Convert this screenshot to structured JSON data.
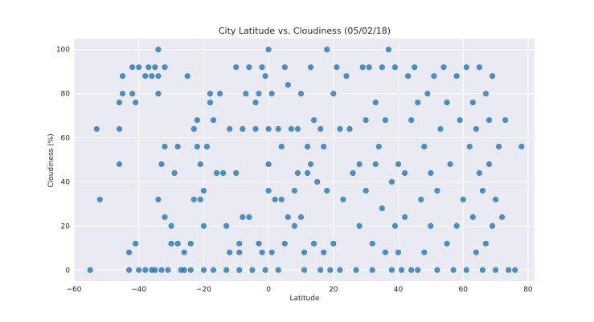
{
  "figure": {
    "background": "#ffffff",
    "plot_background": "#eaeaf2",
    "grid_color": "#ffffff",
    "marker_color": "#1f77b4"
  },
  "chart_data": {
    "type": "scatter",
    "title": "City Latitude vs. Cloudiness (05/02/18)",
    "xlabel": "Latitude",
    "ylabel": "Cloudiness (%)",
    "xlim": [
      -60,
      82
    ],
    "ylim": [
      -5,
      105
    ],
    "xticks": [
      -60,
      -40,
      -20,
      0,
      20,
      40,
      60,
      80
    ],
    "yticks": [
      0,
      20,
      40,
      60,
      80,
      100
    ],
    "grid": true,
    "legend": "none",
    "points": [
      [
        -55,
        0
      ],
      [
        -53,
        64
      ],
      [
        -52,
        32
      ],
      [
        -46,
        48
      ],
      [
        -46,
        64
      ],
      [
        -46,
        76
      ],
      [
        -45,
        80
      ],
      [
        -45,
        88
      ],
      [
        -43,
        0
      ],
      [
        -43,
        8
      ],
      [
        -42,
        80
      ],
      [
        -42,
        92
      ],
      [
        -41,
        12
      ],
      [
        -41,
        76
      ],
      [
        -40,
        0
      ],
      [
        -40,
        92
      ],
      [
        -38,
        0
      ],
      [
        -38,
        88
      ],
      [
        -37,
        92
      ],
      [
        -36,
        0
      ],
      [
        -36,
        88
      ],
      [
        -35,
        0
      ],
      [
        -35,
        92
      ],
      [
        -34,
        32
      ],
      [
        -34,
        100
      ],
      [
        -34,
        88
      ],
      [
        -34,
        80
      ],
      [
        -33,
        48
      ],
      [
        -33,
        0
      ],
      [
        -32,
        56
      ],
      [
        -32,
        24
      ],
      [
        -32,
        92
      ],
      [
        -31,
        0
      ],
      [
        -30,
        12
      ],
      [
        -30,
        20
      ],
      [
        -29,
        44
      ],
      [
        -28,
        12
      ],
      [
        -28,
        56
      ],
      [
        -27,
        0
      ],
      [
        -26,
        8
      ],
      [
        -26,
        0
      ],
      [
        -25,
        88
      ],
      [
        -24,
        12
      ],
      [
        -24,
        0
      ],
      [
        -23,
        32
      ],
      [
        -23,
        64
      ],
      [
        -22,
        68
      ],
      [
        -22,
        56
      ],
      [
        -21,
        32
      ],
      [
        -21,
        48
      ],
      [
        -20,
        36
      ],
      [
        -20,
        20
      ],
      [
        -20,
        0
      ],
      [
        -19,
        56
      ],
      [
        -18,
        76
      ],
      [
        -18,
        80
      ],
      [
        -17,
        0
      ],
      [
        -17,
        68
      ],
      [
        -16,
        44
      ],
      [
        -15,
        80
      ],
      [
        -14,
        44
      ],
      [
        -13,
        20
      ],
      [
        -13,
        0
      ],
      [
        -12,
        8
      ],
      [
        -12,
        64
      ],
      [
        -10,
        44
      ],
      [
        -10,
        92
      ],
      [
        -9,
        12
      ],
      [
        -9,
        8
      ],
      [
        -9,
        0
      ],
      [
        -8,
        64
      ],
      [
        -8,
        24
      ],
      [
        -7,
        80
      ],
      [
        -6,
        92
      ],
      [
        -6,
        24
      ],
      [
        -5,
        0
      ],
      [
        -4,
        64
      ],
      [
        -4,
        76
      ],
      [
        -3,
        12
      ],
      [
        -3,
        80
      ],
      [
        -2,
        92
      ],
      [
        -2,
        8
      ],
      [
        -1,
        0
      ],
      [
        -1,
        88
      ],
      [
        0,
        48
      ],
      [
        0,
        36
      ],
      [
        0,
        100
      ],
      [
        0,
        64
      ],
      [
        1,
        80
      ],
      [
        1,
        8
      ],
      [
        2,
        32
      ],
      [
        3,
        64
      ],
      [
        3,
        0
      ],
      [
        4,
        32
      ],
      [
        4,
        56
      ],
      [
        5,
        92
      ],
      [
        5,
        12
      ],
      [
        6,
        24
      ],
      [
        6,
        84
      ],
      [
        7,
        64
      ],
      [
        8,
        36
      ],
      [
        8,
        20
      ],
      [
        9,
        44
      ],
      [
        9,
        64
      ],
      [
        10,
        80
      ],
      [
        10,
        24
      ],
      [
        11,
        8
      ],
      [
        11,
        0
      ],
      [
        12,
        44
      ],
      [
        12,
        56
      ],
      [
        13,
        48
      ],
      [
        13,
        92
      ],
      [
        14,
        12
      ],
      [
        14,
        68
      ],
      [
        15,
        40
      ],
      [
        16,
        0
      ],
      [
        16,
        64
      ],
      [
        17,
        56
      ],
      [
        17,
        8
      ],
      [
        18,
        36
      ],
      [
        18,
        100
      ],
      [
        19,
        0
      ],
      [
        20,
        12
      ],
      [
        20,
        80
      ],
      [
        21,
        92
      ],
      [
        22,
        64
      ],
      [
        22,
        0
      ],
      [
        23,
        32
      ],
      [
        24,
        88
      ],
      [
        25,
        64
      ],
      [
        26,
        44
      ],
      [
        27,
        0
      ],
      [
        28,
        20
      ],
      [
        28,
        48
      ],
      [
        29,
        92
      ],
      [
        30,
        36
      ],
      [
        30,
        68
      ],
      [
        31,
        92
      ],
      [
        32,
        0
      ],
      [
        32,
        12
      ],
      [
        33,
        48
      ],
      [
        33,
        76
      ],
      [
        34,
        56
      ],
      [
        35,
        92
      ],
      [
        35,
        28
      ],
      [
        36,
        8
      ],
      [
        36,
        68
      ],
      [
        37,
        100
      ],
      [
        38,
        40
      ],
      [
        38,
        0
      ],
      [
        39,
        20
      ],
      [
        39,
        92
      ],
      [
        40,
        48
      ],
      [
        40,
        8
      ],
      [
        41,
        0
      ],
      [
        42,
        24
      ],
      [
        42,
        44
      ],
      [
        43,
        88
      ],
      [
        44,
        68
      ],
      [
        44,
        0
      ],
      [
        45,
        92
      ],
      [
        46,
        0
      ],
      [
        46,
        76
      ],
      [
        47,
        32
      ],
      [
        48,
        56
      ],
      [
        48,
        8
      ],
      [
        49,
        80
      ],
      [
        50,
        44
      ],
      [
        50,
        20
      ],
      [
        51,
        88
      ],
      [
        52,
        36
      ],
      [
        52,
        0
      ],
      [
        53,
        64
      ],
      [
        54,
        92
      ],
      [
        55,
        12
      ],
      [
        55,
        76
      ],
      [
        56,
        48
      ],
      [
        57,
        0
      ],
      [
        58,
        88
      ],
      [
        58,
        20
      ],
      [
        59,
        68
      ],
      [
        60,
        32
      ],
      [
        61,
        0
      ],
      [
        61,
        92
      ],
      [
        62,
        56
      ],
      [
        63,
        24
      ],
      [
        63,
        76
      ],
      [
        64,
        64
      ],
      [
        64,
        8
      ],
      [
        65,
        44
      ],
      [
        65,
        92
      ],
      [
        66,
        36
      ],
      [
        66,
        0
      ],
      [
        67,
        80
      ],
      [
        67,
        12
      ],
      [
        68,
        48
      ],
      [
        68,
        68
      ],
      [
        69,
        20
      ],
      [
        69,
        88
      ],
      [
        70,
        0
      ],
      [
        70,
        32
      ],
      [
        71,
        56
      ],
      [
        72,
        24
      ],
      [
        73,
        68
      ],
      [
        74,
        0
      ],
      [
        76,
        0
      ],
      [
        78,
        56
      ]
    ]
  }
}
